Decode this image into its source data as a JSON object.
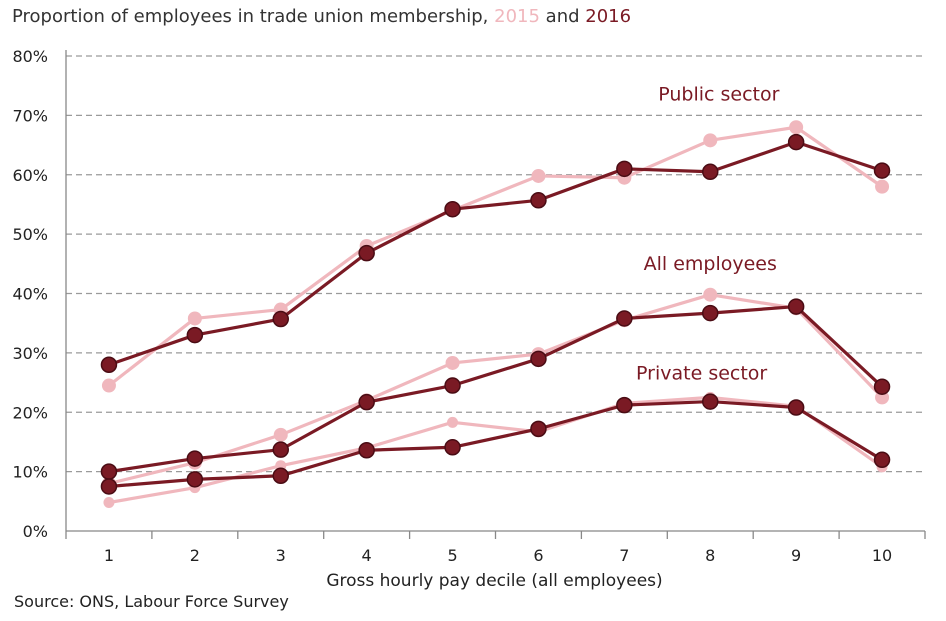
{
  "chart_data": {
    "type": "line",
    "title_prefix": "Proportion of employees in trade union membership, ",
    "title_year_a": "2015",
    "title_and": " and ",
    "title_year_b": "2016",
    "xlabel": "Gross hourly pay decile (all employees)",
    "ylabel": "",
    "source": "Source: ONS, Labour Force Survey",
    "x": [
      1,
      2,
      3,
      4,
      5,
      6,
      7,
      8,
      9,
      10
    ],
    "x_tick_labels": [
      "1",
      "2",
      "3",
      "4",
      "5",
      "6",
      "7",
      "8",
      "9",
      "10"
    ],
    "ylim": [
      0,
      80
    ],
    "y_ticks": [
      0,
      10,
      20,
      30,
      40,
      50,
      60,
      70,
      80
    ],
    "y_tick_labels": [
      "0%",
      "10%",
      "20%",
      "30%",
      "40%",
      "50%",
      "60%",
      "70%",
      "80%"
    ],
    "grid": "horizontal-dashed",
    "colors": {
      "y2015": "#f0b7bd",
      "y2016": "#7a1a24",
      "grid": "#9a9a9a",
      "axis": "#888888"
    },
    "series": [
      {
        "group": "Public sector",
        "year": "2015",
        "values": [
          24.5,
          35.8,
          37.3,
          48.0,
          54.0,
          59.8,
          59.5,
          65.8,
          68.0,
          58.0
        ]
      },
      {
        "group": "Public sector",
        "year": "2016",
        "values": [
          28.0,
          33.0,
          35.7,
          46.8,
          54.2,
          55.7,
          61.0,
          60.5,
          65.5,
          60.7
        ]
      },
      {
        "group": "All employees",
        "year": "2015",
        "values": [
          8.0,
          11.5,
          16.2,
          22.0,
          28.3,
          29.8,
          35.5,
          39.8,
          37.5,
          22.5
        ]
      },
      {
        "group": "All employees",
        "year": "2016",
        "values": [
          10.0,
          12.2,
          13.7,
          21.7,
          24.5,
          29.0,
          35.8,
          36.7,
          37.8,
          24.3
        ]
      },
      {
        "group": "Private sector",
        "year": "2015",
        "values": [
          4.8,
          7.3,
          11.0,
          14.0,
          18.3,
          16.7,
          21.5,
          22.5,
          21.0,
          10.8
        ]
      },
      {
        "group": "Private sector",
        "year": "2016",
        "values": [
          7.5,
          8.7,
          9.3,
          13.6,
          14.1,
          17.2,
          21.2,
          21.8,
          20.8,
          12.0
        ]
      }
    ],
    "annotations": [
      {
        "text": "Public sector",
        "near_x": 8.1,
        "near_y": 72.5
      },
      {
        "text": "All employees",
        "near_x": 8.0,
        "near_y": 44.0
      },
      {
        "text": "Private sector",
        "near_x": 7.9,
        "near_y": 25.5
      }
    ]
  }
}
